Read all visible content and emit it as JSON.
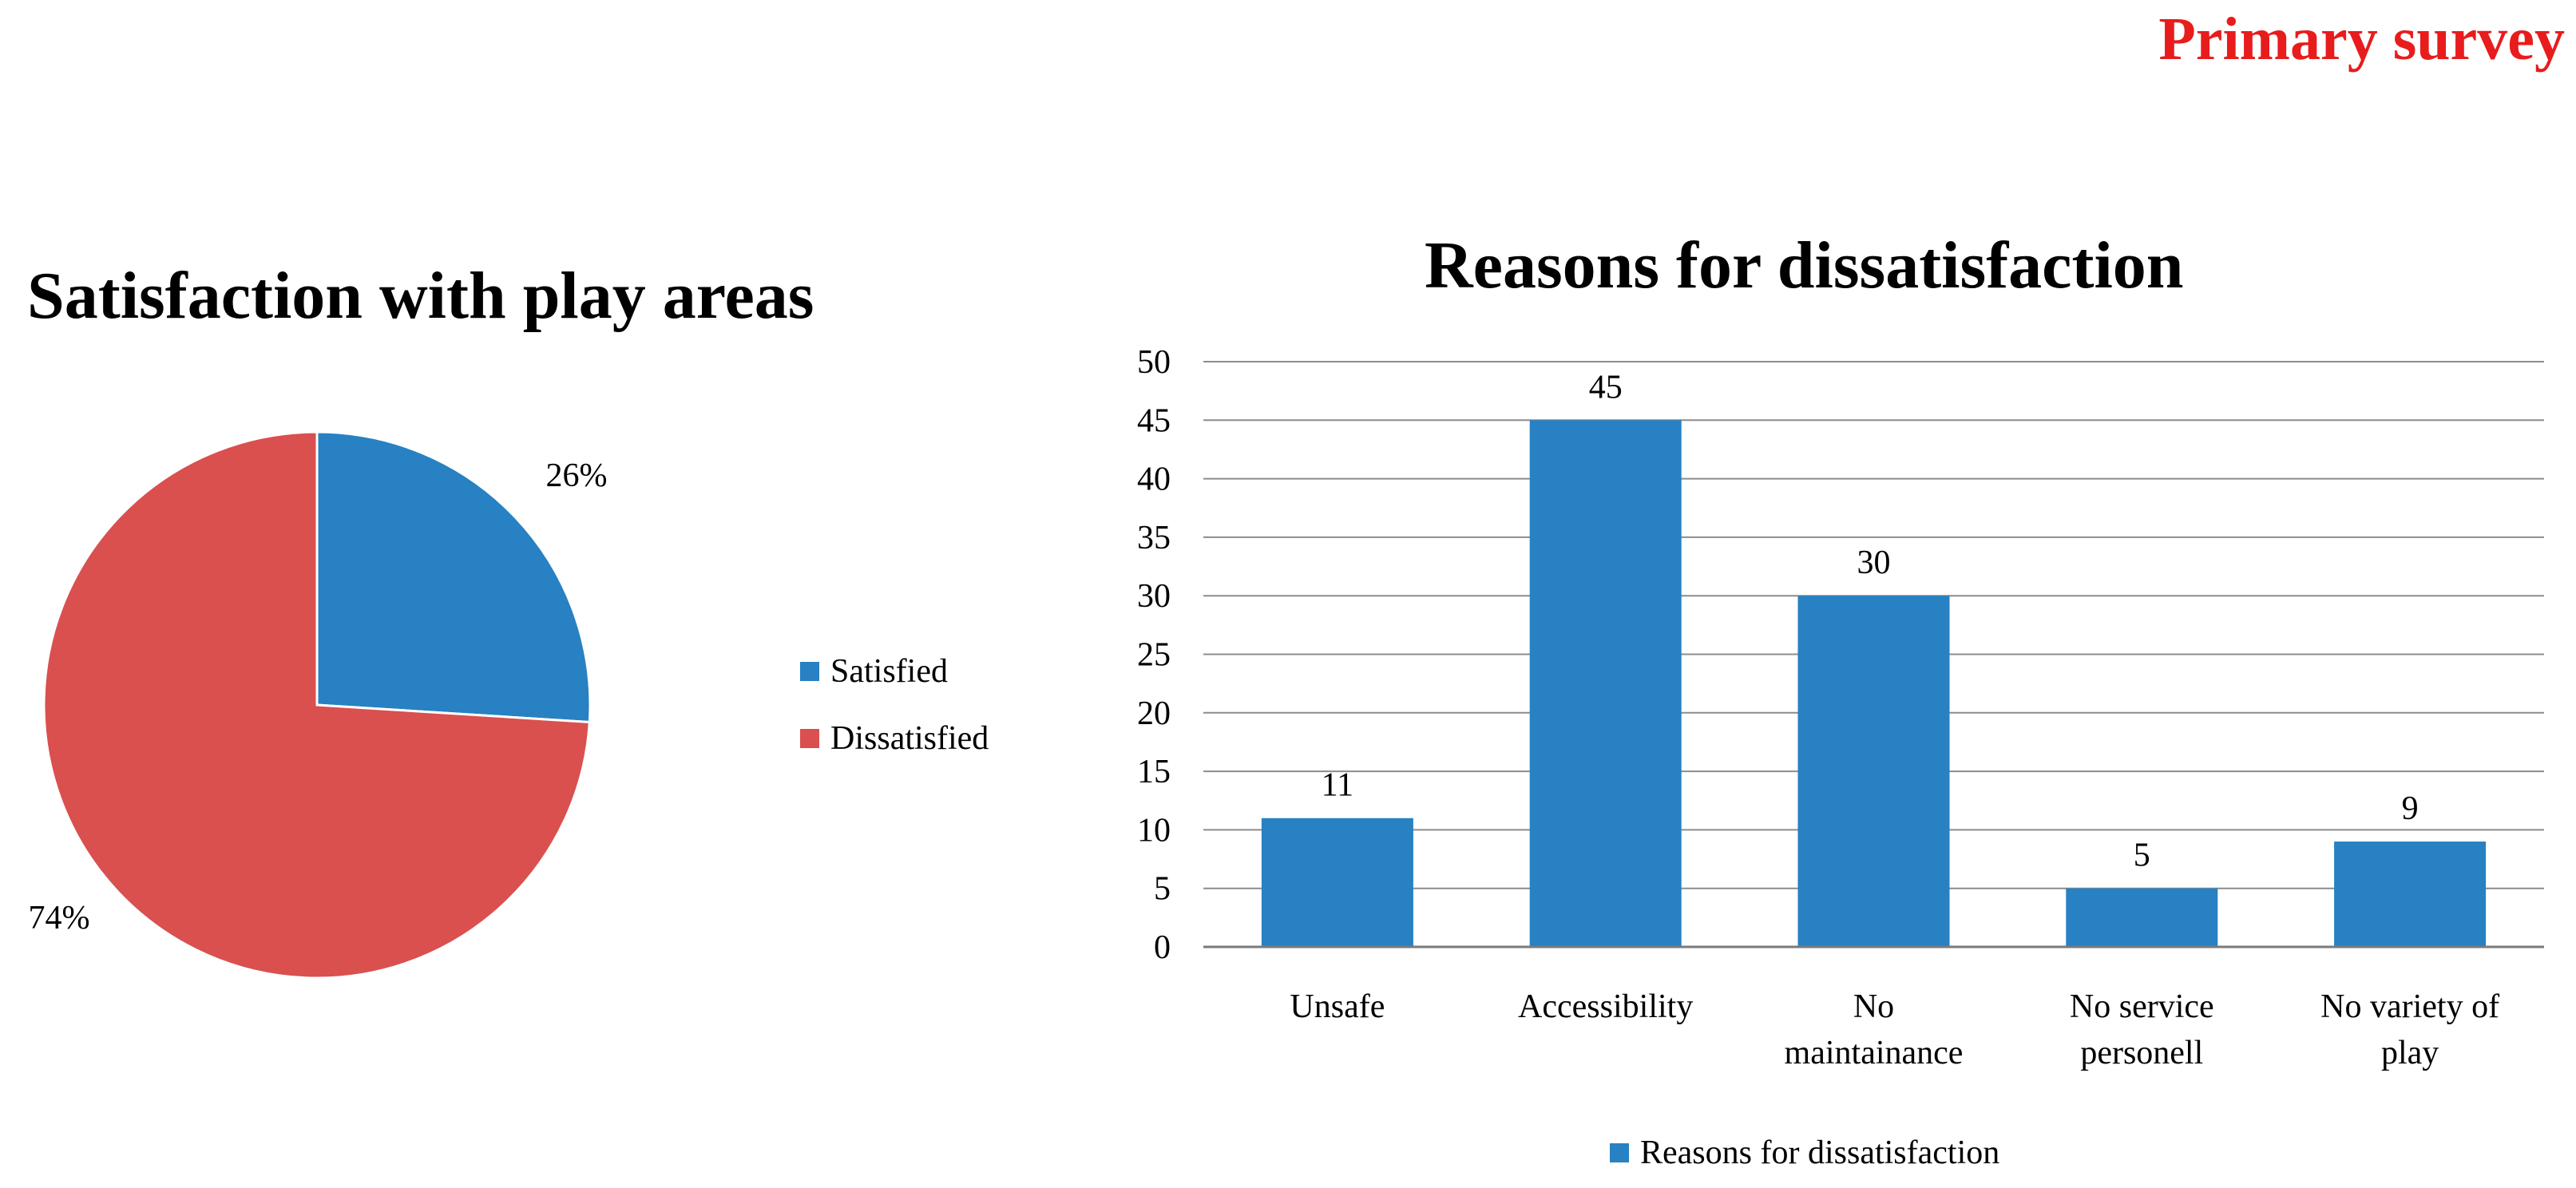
{
  "header": {
    "title": "Primary survey"
  },
  "chart_data": [
    {
      "type": "pie",
      "title": "Satisfaction with play areas",
      "slices": [
        {
          "label": "Satisfied",
          "value": 26,
          "data_label": "26%"
        },
        {
          "label": "Dissatisfied",
          "value": 74,
          "data_label": "74%"
        }
      ],
      "legend": [
        "Satisfied",
        "Dissatisfied"
      ],
      "legend_position": "right",
      "colors": {
        "Satisfied": "#2781c2",
        "Dissatisfied": "#d9504f"
      }
    },
    {
      "type": "bar",
      "title": "Reasons for dissatisfaction",
      "categories": [
        "Unsafe",
        "Accessibility",
        "No maintainance",
        "No service personell",
        "No variety of play"
      ],
      "category_lines": [
        [
          "Unsafe"
        ],
        [
          "Accessibility"
        ],
        [
          "No",
          "maintainance"
        ],
        [
          "No service",
          "personell"
        ],
        [
          "No variety of",
          "play"
        ]
      ],
      "series": [
        {
          "name": "Reasons for dissatisfaction",
          "values": [
            11,
            45,
            30,
            5,
            9
          ]
        }
      ],
      "data_labels": [
        "11",
        "45",
        "30",
        "5",
        "9"
      ],
      "ylim": [
        0,
        50
      ],
      "yticks": [
        0,
        5,
        10,
        15,
        20,
        25,
        30,
        35,
        40,
        45,
        50
      ],
      "ytick_labels": [
        "0",
        "5",
        "10",
        "15",
        "20",
        "25",
        "30",
        "35",
        "40",
        "45",
        "50"
      ],
      "grid": true,
      "legend": [
        "Reasons for dissatisfaction"
      ],
      "legend_position": "bottom",
      "bar_color": "#2781c2",
      "grid_color": "#8c8c8c",
      "xlabel": "",
      "ylabel": ""
    }
  ]
}
